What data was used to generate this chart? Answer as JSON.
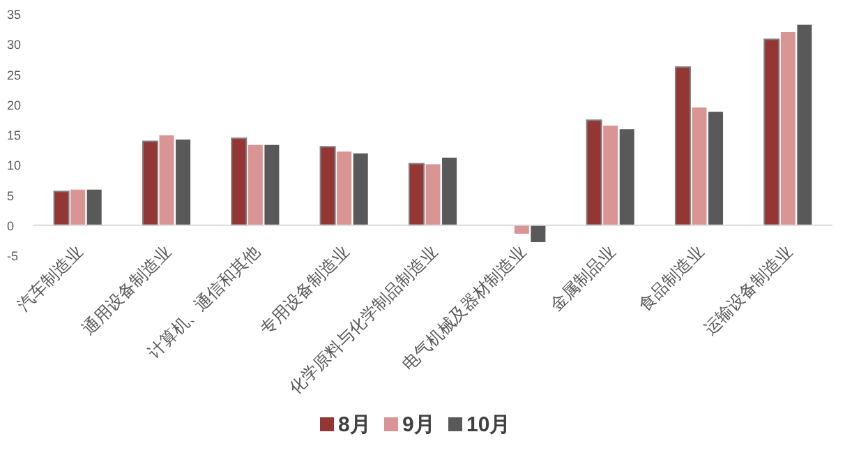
{
  "chart_data": {
    "type": "bar",
    "categories": [
      "汽车制造业",
      "通用设备制造业",
      "计算机、通信和其他",
      "专用设备制造业",
      "化学原料与化学制品制造业",
      "电气机械及器材制造业",
      "金属制品业",
      "食品制造业",
      "运输设备制造业"
    ],
    "series": [
      {
        "name": "8月",
        "color": "#943634",
        "values": [
          5.6,
          13.9,
          14.4,
          13.0,
          10.2,
          null,
          17.4,
          26.2,
          30.8
        ]
      },
      {
        "name": "9月",
        "color": "#d99594",
        "values": [
          5.9,
          14.9,
          13.3,
          12.2,
          10.1,
          -1.4,
          16.5,
          19.5,
          32.0
        ]
      },
      {
        "name": "10月",
        "color": "#595959",
        "values": [
          5.9,
          14.2,
          13.3,
          11.9,
          11.2,
          -2.8,
          15.9,
          18.8,
          33.2
        ]
      }
    ],
    "ylim": [
      -5,
      35
    ],
    "yticks": [
      -5,
      0,
      5,
      10,
      15,
      20,
      25,
      30,
      35
    ],
    "grid": false,
    "legend": "bottom"
  }
}
